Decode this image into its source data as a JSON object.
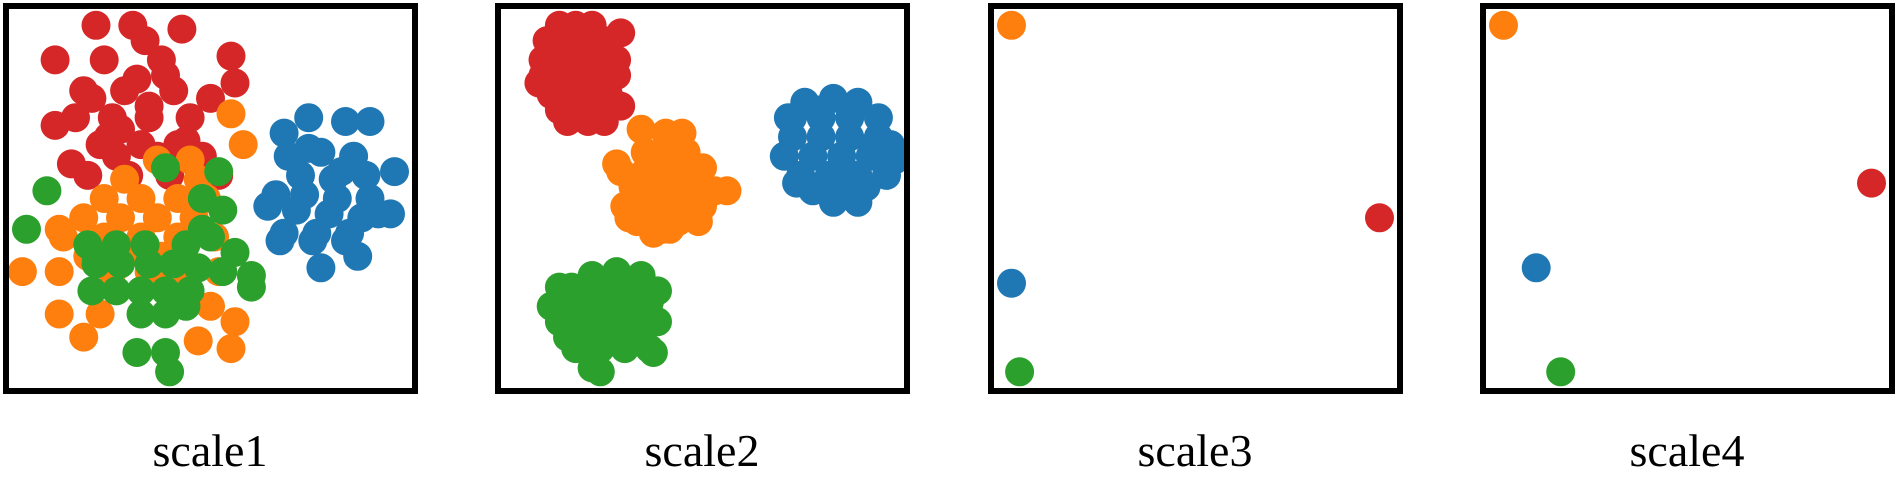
{
  "colors": {
    "red": "#d62728",
    "orange": "#ff7f0e",
    "green": "#2ca02c",
    "blue": "#1f77b4",
    "frame": "#000000"
  },
  "chart_data": [
    {
      "type": "scatter",
      "caption": "scale1",
      "xlim": [
        0,
        1
      ],
      "ylim": [
        0,
        1
      ],
      "grid": false,
      "series": [
        {
          "color": "red",
          "x": [
            0.22,
            0.31,
            0.43,
            0.12,
            0.24,
            0.38,
            0.19,
            0.29,
            0.41,
            0.55,
            0.17,
            0.26,
            0.35,
            0.45,
            0.5,
            0.23,
            0.33,
            0.42,
            0.12,
            0.27,
            0.37,
            0.47,
            0.2,
            0.3,
            0.4,
            0.52,
            0.25,
            0.35,
            0.16,
            0.44,
            0.32,
            0.21,
            0.39,
            0.28,
            0.48,
            0.56,
            0.34
          ],
          "y": [
            0.95,
            0.95,
            0.94,
            0.86,
            0.86,
            0.86,
            0.78,
            0.78,
            0.78,
            0.87,
            0.71,
            0.71,
            0.71,
            0.71,
            0.76,
            0.64,
            0.64,
            0.64,
            0.69,
            0.61,
            0.61,
            0.61,
            0.56,
            0.56,
            0.56,
            0.56,
            0.66,
            0.74,
            0.59,
            0.65,
            0.81,
            0.76,
            0.82,
            0.68,
            0.61,
            0.8,
            0.91
          ]
        },
        {
          "color": "orange",
          "x": [
            0.55,
            0.58,
            0.37,
            0.45,
            0.29,
            0.47,
            0.24,
            0.33,
            0.42,
            0.49,
            0.19,
            0.28,
            0.37,
            0.46,
            0.14,
            0.24,
            0.33,
            0.42,
            0.51,
            0.2,
            0.29,
            0.38,
            0.13,
            0.04,
            0.13,
            0.26,
            0.35,
            0.44,
            0.52,
            0.13,
            0.23,
            0.5,
            0.56,
            0.19,
            0.47,
            0.55,
            0.37
          ],
          "y": [
            0.72,
            0.64,
            0.6,
            0.6,
            0.55,
            0.55,
            0.5,
            0.5,
            0.5,
            0.5,
            0.45,
            0.45,
            0.45,
            0.45,
            0.4,
            0.4,
            0.4,
            0.4,
            0.4,
            0.35,
            0.35,
            0.35,
            0.42,
            0.31,
            0.31,
            0.31,
            0.31,
            0.31,
            0.31,
            0.2,
            0.2,
            0.22,
            0.18,
            0.14,
            0.13,
            0.11,
            0.28
          ]
        },
        {
          "color": "green",
          "x": [
            0.39,
            0.52,
            0.1,
            0.48,
            0.53,
            0.05,
            0.48,
            0.2,
            0.27,
            0.34,
            0.44,
            0.5,
            0.56,
            0.22,
            0.28,
            0.35,
            0.41,
            0.47,
            0.53,
            0.6,
            0.21,
            0.27,
            0.33,
            0.39,
            0.45,
            0.6,
            0.33,
            0.39,
            0.44,
            0.32,
            0.39,
            0.4,
            0.22
          ],
          "y": [
            0.58,
            0.57,
            0.52,
            0.5,
            0.47,
            0.42,
            0.42,
            0.38,
            0.38,
            0.38,
            0.38,
            0.4,
            0.36,
            0.33,
            0.33,
            0.33,
            0.33,
            0.32,
            0.31,
            0.27,
            0.26,
            0.26,
            0.26,
            0.26,
            0.26,
            0.3,
            0.2,
            0.2,
            0.22,
            0.1,
            0.1,
            0.05,
            0.35
          ]
        },
        {
          "color": "blue",
          "x": [
            0.68,
            0.74,
            0.83,
            0.89,
            0.69,
            0.77,
            0.85,
            0.72,
            0.8,
            0.88,
            0.95,
            0.66,
            0.73,
            0.81,
            0.89,
            0.64,
            0.71,
            0.79,
            0.87,
            0.94,
            0.68,
            0.76,
            0.84,
            0.67,
            0.75,
            0.83,
            0.91,
            0.86,
            0.77,
            0.74,
            0.82
          ],
          "y": [
            0.67,
            0.71,
            0.7,
            0.7,
            0.61,
            0.62,
            0.61,
            0.56,
            0.55,
            0.56,
            0.57,
            0.51,
            0.51,
            0.5,
            0.5,
            0.48,
            0.47,
            0.46,
            0.45,
            0.46,
            0.41,
            0.41,
            0.41,
            0.39,
            0.39,
            0.39,
            0.46,
            0.35,
            0.32,
            0.63,
            0.57
          ]
        }
      ]
    },
    {
      "type": "scatter",
      "caption": "scale2",
      "xlim": [
        0,
        1
      ],
      "ylim": [
        0,
        1
      ],
      "grid": false,
      "series": [
        {
          "color": "red",
          "x": [
            0.15,
            0.19,
            0.23,
            0.12,
            0.17,
            0.22,
            0.26,
            0.11,
            0.16,
            0.21,
            0.25,
            0.29,
            0.11,
            0.15,
            0.2,
            0.24,
            0.29,
            0.13,
            0.18,
            0.22,
            0.27,
            0.15,
            0.2,
            0.25,
            0.17,
            0.22,
            0.26,
            0.3,
            0.1,
            0.3
          ],
          "y": [
            0.95,
            0.95,
            0.95,
            0.91,
            0.91,
            0.91,
            0.91,
            0.86,
            0.86,
            0.86,
            0.86,
            0.86,
            0.82,
            0.82,
            0.82,
            0.82,
            0.82,
            0.77,
            0.77,
            0.77,
            0.77,
            0.73,
            0.73,
            0.73,
            0.7,
            0.7,
            0.7,
            0.74,
            0.8,
            0.93
          ]
        },
        {
          "color": "orange",
          "x": [
            0.35,
            0.41,
            0.45,
            0.36,
            0.41,
            0.46,
            0.3,
            0.36,
            0.41,
            0.46,
            0.5,
            0.33,
            0.38,
            0.43,
            0.48,
            0.53,
            0.31,
            0.36,
            0.41,
            0.46,
            0.5,
            0.34,
            0.39,
            0.44,
            0.49,
            0.38,
            0.42,
            0.4,
            0.56,
            0.29,
            0.32
          ],
          "y": [
            0.68,
            0.67,
            0.67,
            0.62,
            0.62,
            0.62,
            0.57,
            0.57,
            0.57,
            0.57,
            0.58,
            0.53,
            0.53,
            0.53,
            0.53,
            0.52,
            0.48,
            0.48,
            0.48,
            0.48,
            0.48,
            0.44,
            0.44,
            0.44,
            0.44,
            0.41,
            0.42,
            0.42,
            0.52,
            0.59,
            0.45
          ]
        },
        {
          "color": "green",
          "x": [
            0.23,
            0.29,
            0.35,
            0.18,
            0.24,
            0.3,
            0.36,
            0.13,
            0.19,
            0.25,
            0.31,
            0.37,
            0.15,
            0.21,
            0.27,
            0.33,
            0.39,
            0.17,
            0.23,
            0.28,
            0.34,
            0.38,
            0.19,
            0.25,
            0.31,
            0.37,
            0.25,
            0.15,
            0.39,
            0.23
          ],
          "y": [
            0.3,
            0.31,
            0.3,
            0.27,
            0.27,
            0.27,
            0.27,
            0.22,
            0.22,
            0.22,
            0.22,
            0.23,
            0.18,
            0.18,
            0.18,
            0.18,
            0.18,
            0.14,
            0.14,
            0.14,
            0.14,
            0.1,
            0.11,
            0.11,
            0.11,
            0.11,
            0.05,
            0.27,
            0.26,
            0.06
          ]
        },
        {
          "color": "blue",
          "x": [
            0.75,
            0.82,
            0.88,
            0.72,
            0.79,
            0.86,
            0.93,
            0.72,
            0.79,
            0.86,
            0.93,
            0.7,
            0.77,
            0.84,
            0.91,
            0.97,
            0.74,
            0.81,
            0.88,
            0.95,
            0.77,
            0.84,
            0.9,
            0.82,
            0.88,
            0.71,
            0.78,
            0.85,
            0.92,
            0.73,
            0.96
          ],
          "y": [
            0.75,
            0.76,
            0.75,
            0.71,
            0.71,
            0.71,
            0.71,
            0.66,
            0.66,
            0.66,
            0.66,
            0.61,
            0.61,
            0.61,
            0.61,
            0.6,
            0.56,
            0.56,
            0.56,
            0.56,
            0.52,
            0.52,
            0.53,
            0.49,
            0.49,
            0.71,
            0.73,
            0.57,
            0.64,
            0.54,
            0.64
          ]
        }
      ]
    },
    {
      "type": "scatter",
      "caption": "scale3",
      "xlim": [
        0,
        1
      ],
      "ylim": [
        0,
        1
      ],
      "grid": false,
      "series": [
        {
          "color": "orange",
          "x": [
            0.05
          ],
          "y": [
            0.95
          ]
        },
        {
          "color": "red",
          "x": [
            0.95
          ],
          "y": [
            0.45
          ]
        },
        {
          "color": "blue",
          "x": [
            0.05
          ],
          "y": [
            0.28
          ]
        },
        {
          "color": "green",
          "x": [
            0.07
          ],
          "y": [
            0.05
          ]
        }
      ]
    },
    {
      "type": "scatter",
      "caption": "scale4",
      "xlim": [
        0,
        1
      ],
      "ylim": [
        0,
        1
      ],
      "grid": false,
      "series": [
        {
          "color": "orange",
          "x": [
            0.05
          ],
          "y": [
            0.95
          ]
        },
        {
          "color": "red",
          "x": [
            0.95
          ],
          "y": [
            0.54
          ]
        },
        {
          "color": "blue",
          "x": [
            0.13
          ],
          "y": [
            0.32
          ]
        },
        {
          "color": "green",
          "x": [
            0.19
          ],
          "y": [
            0.05
          ]
        }
      ]
    }
  ]
}
